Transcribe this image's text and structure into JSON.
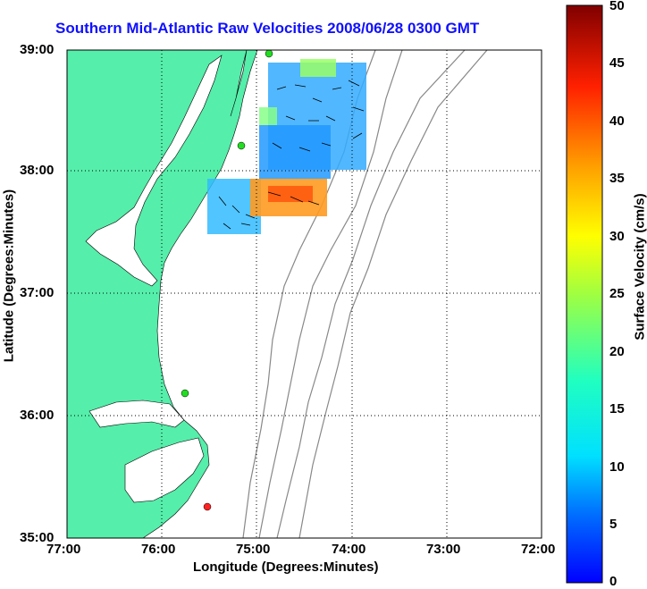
{
  "title": "Southern Mid-Atlantic Raw Velocities 2008/06/28 0300 GMT",
  "xlabel": "Longitude (Degrees:Minutes)",
  "ylabel": "Latitude (Degrees:Minutes)",
  "colorbar": {
    "label": "Surface Velocity (cm/s)",
    "ticks": [
      "50",
      "45",
      "40",
      "35",
      "30",
      "25",
      "20",
      "15",
      "10",
      "5",
      "0"
    ],
    "range": [
      0,
      50
    ]
  },
  "x_ticks": [
    "77:00",
    "76:00",
    "75:00",
    "74:00",
    "73:00",
    "72:00"
  ],
  "y_ticks": [
    "39:00",
    "38:00",
    "37:00",
    "36:00",
    "35:00"
  ],
  "colors": {
    "land": "#55eeaa",
    "contour": "#888888",
    "title": "#1010ff",
    "station_green": "#22dd22",
    "station_red": "#ff2222"
  }
}
